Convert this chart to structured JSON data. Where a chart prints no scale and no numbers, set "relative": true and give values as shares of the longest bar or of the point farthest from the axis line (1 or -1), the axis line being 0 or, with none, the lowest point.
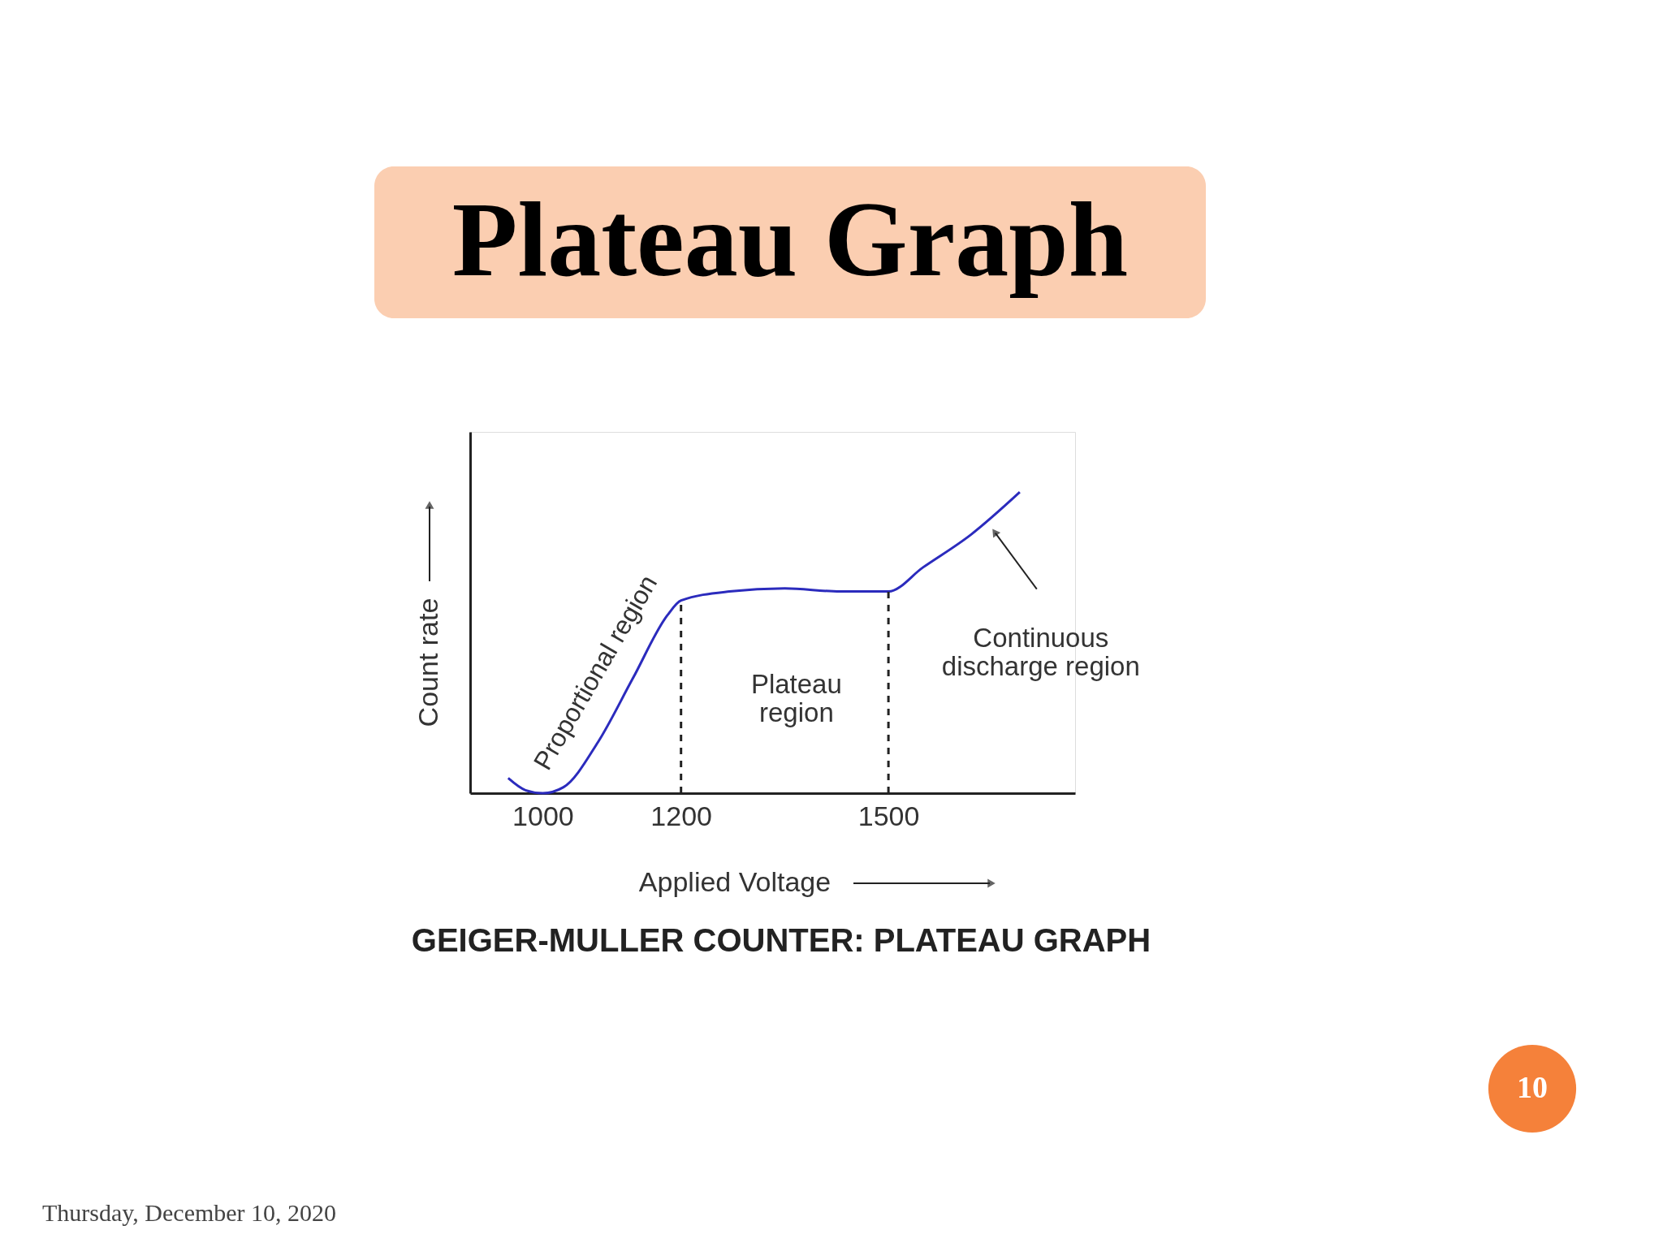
{
  "chart_data": {
    "type": "line",
    "title": "Plateau Graph",
    "subtitle": "GEIGER-MULLER COUNTER: PLATEAU GRAPH",
    "xlabel": "Applied Voltage",
    "ylabel": "Count rate",
    "relative": true,
    "x": [
      950,
      975,
      1000,
      1030,
      1080,
      1130,
      1180,
      1200,
      1270,
      1350,
      1430,
      1500,
      1550,
      1620,
      1690
    ],
    "series": [
      {
        "color": "#2b2bbd",
        "values": [
          0.05,
          0.01,
          0,
          0.02,
          0.17,
          0.38,
          0.59,
          0.64,
          0.67,
          0.68,
          0.67,
          0.67,
          0.75,
          0.86,
          1.0
        ]
      }
    ],
    "xlim": [
      895,
      1770
    ],
    "xticks": [
      1000,
      1200,
      1500
    ],
    "grid": false,
    "marker": "none",
    "line_style": "solid",
    "ref_lines": [
      {
        "axis": "x",
        "value": 1200,
        "line_style": "dashed",
        "color": "#222222"
      },
      {
        "axis": "x",
        "value": 1500,
        "line_style": "dashed",
        "color": "#222222"
      }
    ],
    "annotations": [
      "Proportional region",
      "Plateau\nregion",
      "Continuous\ndischarge region",
      "Thursday, December 10, 2020",
      "10"
    ]
  }
}
